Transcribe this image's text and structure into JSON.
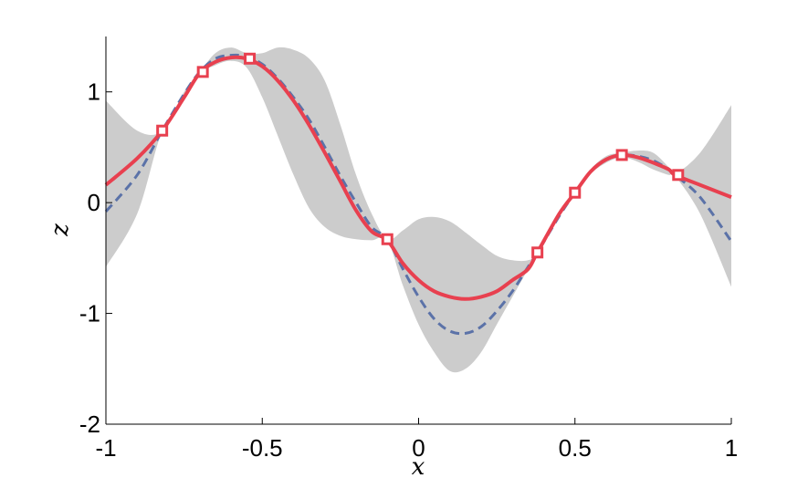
{
  "chart_data": {
    "type": "line",
    "title": "",
    "xlabel": "x",
    "ylabel": "z",
    "xlim": [
      -1,
      1
    ],
    "ylim": [
      -2,
      1.5
    ],
    "xticks": [
      -1,
      -0.5,
      0,
      0.5,
      1
    ],
    "yticks": [
      -2,
      -1,
      0,
      1
    ],
    "xtick_labels": [
      "-1",
      "-0.5",
      "0",
      "0.5",
      "1"
    ],
    "ytick_labels": [
      "-2",
      "-1",
      "0",
      "1"
    ],
    "grid": false,
    "legend": "none",
    "colors": {
      "red": "#e8404f",
      "blue": "#5b72a8",
      "band": "#cccccc"
    },
    "series": [
      {
        "style": "solid",
        "color": "red",
        "x": [
          -1.0,
          -0.9,
          -0.82,
          -0.75,
          -0.7,
          -0.65,
          -0.6,
          -0.55,
          -0.5,
          -0.45,
          -0.4,
          -0.35,
          -0.3,
          -0.25,
          -0.2,
          -0.15,
          -0.1,
          -0.05,
          0.0,
          0.05,
          0.1,
          0.15,
          0.2,
          0.25,
          0.3,
          0.35,
          0.38,
          0.45,
          0.5,
          0.55,
          0.6,
          0.65,
          0.7,
          0.75,
          0.8,
          0.82,
          0.9,
          1.0
        ],
        "y": [
          0.16,
          0.4,
          0.65,
          0.95,
          1.17,
          1.27,
          1.31,
          1.3,
          1.23,
          1.1,
          0.92,
          0.7,
          0.45,
          0.19,
          -0.07,
          -0.26,
          -0.34,
          -0.55,
          -0.7,
          -0.8,
          -0.85,
          -0.87,
          -0.85,
          -0.8,
          -0.7,
          -0.6,
          -0.45,
          -0.1,
          0.09,
          0.28,
          0.39,
          0.43,
          0.41,
          0.36,
          0.3,
          0.25,
          0.16,
          0.05
        ]
      },
      {
        "style": "dashed",
        "color": "blue",
        "x": [
          -1.0,
          -0.9,
          -0.82,
          -0.75,
          -0.7,
          -0.65,
          -0.6,
          -0.55,
          -0.5,
          -0.45,
          -0.4,
          -0.35,
          -0.3,
          -0.25,
          -0.2,
          -0.15,
          -0.1,
          -0.05,
          0.0,
          0.05,
          0.1,
          0.15,
          0.2,
          0.25,
          0.3,
          0.35,
          0.38,
          0.45,
          0.5,
          0.55,
          0.6,
          0.65,
          0.7,
          0.75,
          0.8,
          0.82,
          0.9,
          1.0
        ],
        "y": [
          -0.08,
          0.25,
          0.65,
          0.98,
          1.18,
          1.3,
          1.33,
          1.32,
          1.25,
          1.12,
          0.95,
          0.75,
          0.5,
          0.24,
          0.0,
          -0.22,
          -0.33,
          -0.6,
          -0.85,
          -1.05,
          -1.16,
          -1.18,
          -1.12,
          -0.98,
          -0.8,
          -0.58,
          -0.45,
          -0.12,
          0.09,
          0.28,
          0.39,
          0.43,
          0.42,
          0.38,
          0.3,
          0.25,
          0.05,
          -0.35
        ]
      }
    ],
    "band": {
      "color": "band",
      "x": [
        -1.0,
        -0.9,
        -0.82,
        -0.75,
        -0.7,
        -0.65,
        -0.6,
        -0.55,
        -0.5,
        -0.45,
        -0.4,
        -0.35,
        -0.3,
        -0.25,
        -0.2,
        -0.15,
        -0.1,
        -0.05,
        0.0,
        0.05,
        0.1,
        0.15,
        0.2,
        0.25,
        0.3,
        0.35,
        0.38,
        0.45,
        0.5,
        0.55,
        0.6,
        0.65,
        0.7,
        0.75,
        0.8,
        0.82,
        0.9,
        1.0
      ],
      "upper": [
        0.92,
        0.65,
        0.65,
        1.0,
        1.18,
        1.35,
        1.4,
        1.35,
        1.35,
        1.4,
        1.38,
        1.3,
        1.1,
        0.7,
        0.25,
        -0.1,
        -0.33,
        -0.25,
        -0.15,
        -0.13,
        -0.17,
        -0.27,
        -0.38,
        -0.48,
        -0.52,
        -0.52,
        -0.45,
        -0.09,
        0.09,
        0.3,
        0.42,
        0.45,
        0.47,
        0.45,
        0.32,
        0.26,
        0.45,
        0.88
      ],
      "lower": [
        -0.58,
        -0.1,
        0.65,
        0.92,
        1.16,
        1.24,
        1.28,
        1.22,
        0.95,
        0.6,
        0.25,
        -0.05,
        -0.22,
        -0.3,
        -0.33,
        -0.34,
        -0.34,
        -0.75,
        -1.1,
        -1.35,
        -1.52,
        -1.5,
        -1.35,
        -1.1,
        -0.85,
        -0.6,
        -0.45,
        -0.12,
        0.09,
        0.26,
        0.36,
        0.41,
        0.37,
        0.3,
        0.25,
        0.24,
        -0.1,
        -0.76
      ]
    },
    "markers": {
      "color": "red",
      "x": [
        -0.82,
        -0.69,
        -0.54,
        -0.1,
        0.38,
        0.5,
        0.65,
        0.83
      ],
      "y": [
        0.65,
        1.18,
        1.3,
        -0.33,
        -0.45,
        0.09,
        0.43,
        0.25
      ]
    }
  }
}
